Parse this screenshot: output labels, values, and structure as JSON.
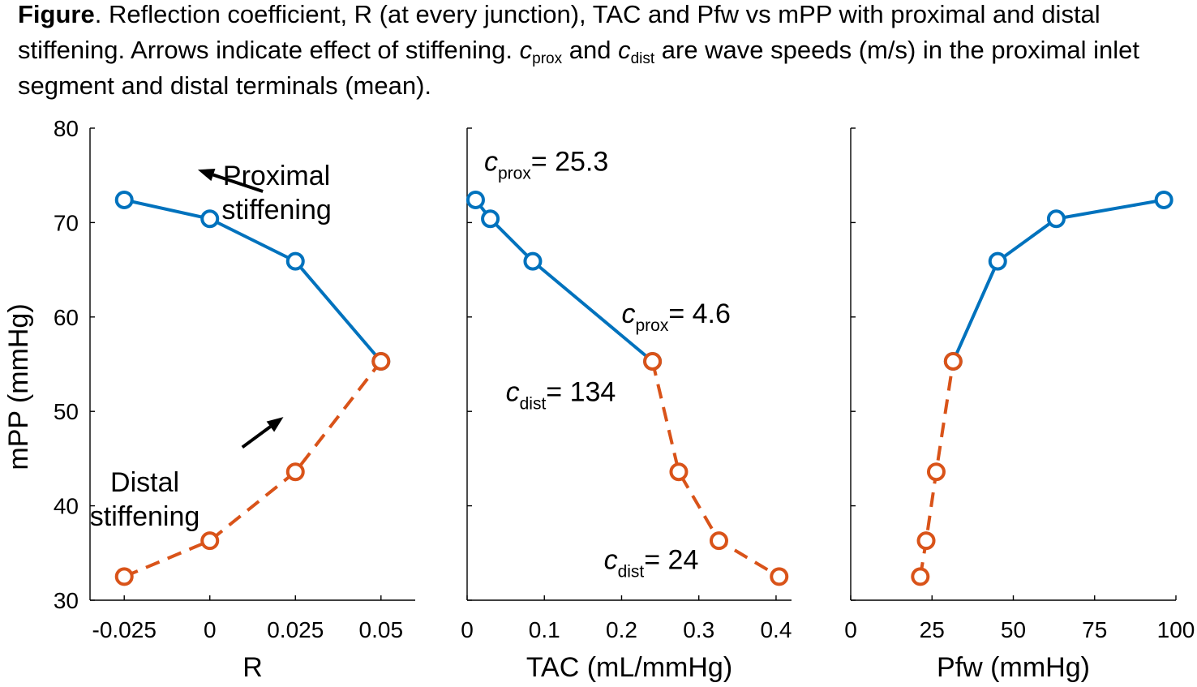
{
  "caption": {
    "bold": "Figure",
    "segments": [
      {
        "t": "text",
        "v": ". Reflection coefficient, R (at every junction), TAC and Pfw vs mPP with proximal and distal stiffening. Arrows indicate effect of stiffening. "
      },
      {
        "t": "ital",
        "v": "c"
      },
      {
        "t": "sub",
        "v": "prox"
      },
      {
        "t": "text",
        "v": " and "
      },
      {
        "t": "ital",
        "v": "c"
      },
      {
        "t": "sub",
        "v": "dist"
      },
      {
        "t": "text",
        "v": " are wave speeds (m/s) in the proximal inlet segment and distal terminals (mean)."
      }
    ]
  },
  "colors": {
    "proximal": "#0072BD",
    "distal": "#D95319",
    "axis": "#000000"
  },
  "chart_data": [
    {
      "type": "line",
      "xlabel": "R",
      "ylabel": "mPP (mmHg)",
      "xlim": [
        -0.035,
        0.06
      ],
      "ylim": [
        30,
        80
      ],
      "xticks": [
        -0.025,
        0,
        0.025,
        0.05
      ],
      "xtick_labels": [
        "-0.025",
        "0",
        "0.025",
        "0.05"
      ],
      "yticks": [
        30,
        40,
        50,
        60,
        70,
        80
      ],
      "ytick_labels": [
        "30",
        "40",
        "50",
        "60",
        "70",
        "80"
      ],
      "series": [
        {
          "style": "proximal",
          "x": [
            -0.025,
            0,
            0.025,
            0.05
          ],
          "y": [
            72.4,
            70.4,
            65.9,
            55.3
          ]
        },
        {
          "style": "distal",
          "x": [
            -0.025,
            0,
            0.025,
            0.05
          ],
          "y": [
            32.5,
            36.3,
            43.6,
            55.3
          ]
        }
      ],
      "annotations": [
        {
          "text_lines": [
            "Proximal",
            "stiffening"
          ],
          "at": [
            0.0195,
            74
          ],
          "anchor": "middle"
        },
        {
          "text_lines": [
            "Distal",
            "stiffening"
          ],
          "at": [
            -0.019,
            41.5
          ],
          "anchor": "middle"
        }
      ],
      "arrows": [
        {
          "from": [
            0.0155,
            73.3
          ],
          "to": [
            -0.0035,
            75.6
          ]
        },
        {
          "from": [
            0.0095,
            46.2
          ],
          "to": [
            0.0215,
            49.4
          ]
        }
      ]
    },
    {
      "type": "line",
      "xlabel": "TAC (mL/mmHg)",
      "ylabel": "",
      "xlim": [
        0,
        0.42
      ],
      "ylim": [
        30,
        80
      ],
      "xticks": [
        0,
        0.1,
        0.2,
        0.3,
        0.4
      ],
      "xtick_labels": [
        "0",
        "0.1",
        "0.2",
        "0.3",
        "0.4"
      ],
      "yticks": [
        30,
        40,
        50,
        60,
        70,
        80
      ],
      "ytick_labels": [],
      "series": [
        {
          "style": "proximal",
          "x": [
            0.011,
            0.03,
            0.085,
            0.24
          ],
          "y": [
            72.4,
            70.4,
            65.9,
            55.3
          ]
        },
        {
          "style": "distal",
          "x": [
            0.24,
            0.274,
            0.326,
            0.404
          ],
          "y": [
            55.3,
            43.6,
            36.3,
            32.5
          ]
        }
      ],
      "speed_labels": [
        {
          "sym": "c",
          "sub": "prox",
          "val": "= 25.3",
          "at": [
            0.022,
            75.5
          ]
        },
        {
          "sym": "c",
          "sub": "prox",
          "val": "= 4.6",
          "at": [
            0.2,
            59.4
          ]
        },
        {
          "sym": "c",
          "sub": "dist",
          "val": "= 134",
          "at": [
            0.05,
            51.1
          ]
        },
        {
          "sym": "c",
          "sub": "dist",
          "val": "= 24",
          "at": [
            0.177,
            33.3
          ]
        }
      ]
    },
    {
      "type": "line",
      "xlabel": "Pfw (mmHg)",
      "ylabel": "",
      "xlim": [
        0,
        100
      ],
      "ylim": [
        30,
        80
      ],
      "xticks": [
        0,
        25,
        50,
        75,
        100
      ],
      "xtick_labels": [
        "0",
        "25",
        "50",
        "75",
        "100"
      ],
      "yticks": [
        30,
        40,
        50,
        60,
        70,
        80
      ],
      "ytick_labels": [],
      "series": [
        {
          "style": "proximal",
          "x": [
            31.5,
            45.2,
            63.2,
            96.3
          ],
          "y": [
            55.3,
            65.9,
            70.4,
            72.4
          ]
        },
        {
          "style": "distal",
          "x": [
            21.4,
            23.2,
            26.3,
            31.5
          ],
          "y": [
            32.5,
            36.3,
            43.6,
            55.3
          ]
        }
      ]
    }
  ]
}
